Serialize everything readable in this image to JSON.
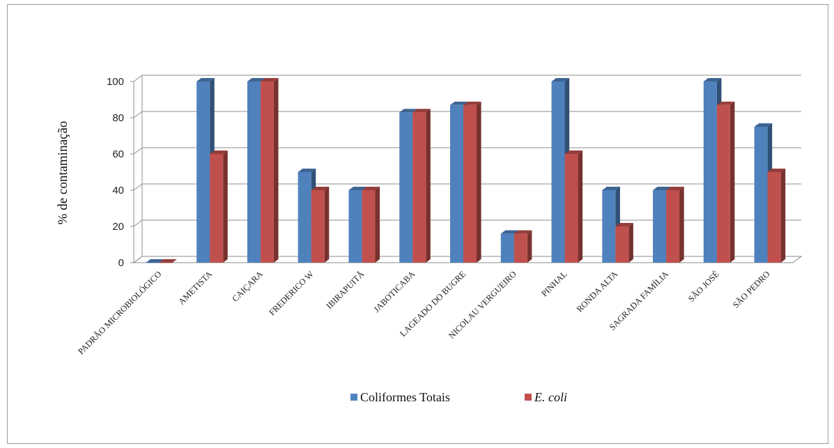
{
  "chart_data": {
    "type": "bar",
    "title": "",
    "xlabel": "",
    "ylabel": "% de contaminação",
    "ylim": [
      0,
      100
    ],
    "yticks": [
      0,
      20,
      40,
      60,
      80,
      100
    ],
    "grid": true,
    "legend_position": "bottom",
    "categories": [
      "PADRÃO MICROBIOLÓGICO",
      "AMETISTA",
      "CAIÇARA",
      "FREDERICO W",
      "IBIRAPUITÃ",
      "JABOTICABA",
      "LAGEADO DO BUGRE",
      "NICOLAU VERGUEIRO",
      "PINHAL",
      "RONDA ALTA",
      "SAGRADA FAMÍLIA",
      "SÃO JOSÉ",
      "SÃO PEDRO"
    ],
    "series": [
      {
        "name": "Coliformes Totais",
        "color": "#4f81bd",
        "values": [
          0,
          100,
          100,
          50,
          40,
          83,
          87,
          16,
          100,
          40,
          40,
          100,
          75
        ]
      },
      {
        "name": "E. coli",
        "color": "#c0504d",
        "values": [
          0,
          60,
          100,
          40,
          40,
          83,
          87,
          16,
          60,
          20,
          40,
          87,
          50
        ]
      }
    ]
  }
}
